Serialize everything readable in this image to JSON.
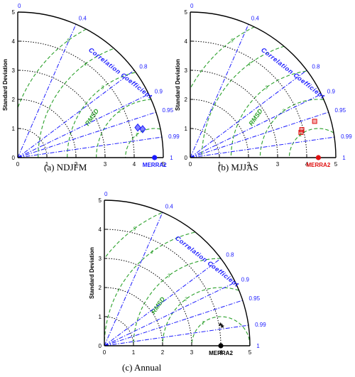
{
  "chart_data": [
    {
      "type": "taylor",
      "panel": "(a)",
      "caption": "NDJFM",
      "ylabel": "Standard Deviation",
      "corr_title": "Correlation Coefficient",
      "rmsd_title": "RMSD",
      "std_ticks": [
        "0",
        "1",
        "2",
        "3",
        "4",
        "5"
      ],
      "corr_ticks": [
        "0",
        "0.4",
        "0.8",
        "0.9",
        "0.95",
        "0.99",
        "1"
      ],
      "rmsd_ticks": [
        "1",
        "2",
        "3",
        "4",
        "5"
      ],
      "rlim": [
        0,
        5
      ],
      "reference": {
        "label": "MERRA2",
        "std": 4.7,
        "color": "#1a1aff"
      },
      "points": [
        {
          "std": 4.25,
          "corr": 0.97,
          "color": "#1a1aff",
          "marker": "diamond"
        },
        {
          "std": 4.4,
          "corr": 0.975,
          "color": "#1a1aff",
          "marker": "diamond"
        }
      ]
    },
    {
      "type": "taylor",
      "panel": "(b)",
      "caption": "MJJAS",
      "ylabel": "Standard Deviation",
      "corr_title": "Correlation Coefficient",
      "rmsd_title": "RMSD",
      "std_ticks": [
        "0",
        "1",
        "2",
        "3",
        "4",
        "5"
      ],
      "corr_ticks": [
        "0",
        "0.4",
        "0.8",
        "0.9",
        "0.95",
        "0.99",
        "1"
      ],
      "rmsd_ticks": [
        "1",
        "2",
        "3",
        "4",
        "5"
      ],
      "rlim": [
        0,
        5
      ],
      "reference": {
        "label": "MERRA2",
        "std": 4.4,
        "color": "#e01010"
      },
      "points": [
        {
          "std": 4.45,
          "corr": 0.96,
          "color": "#e01010",
          "marker": "square"
        },
        {
          "std": 3.95,
          "corr": 0.97,
          "color": "#e01010",
          "marker": "square"
        },
        {
          "std": 3.9,
          "corr": 0.975,
          "color": "#e01010",
          "marker": "square"
        }
      ]
    },
    {
      "type": "taylor",
      "panel": "(c)",
      "caption": "Annual",
      "ylabel": "Standard Deviation",
      "corr_title": "Correlation Coefficient",
      "rmsd_title": "RMSD",
      "std_ticks": [
        "0",
        "1",
        "2",
        "3",
        "4",
        "5"
      ],
      "corr_ticks": [
        "0",
        "0.4",
        "0.8",
        "0.9",
        "0.95",
        "0.99",
        "1"
      ],
      "rmsd_ticks": [
        "1",
        "2",
        "3",
        "4",
        "5"
      ],
      "rlim": [
        0,
        5
      ],
      "reference": {
        "label": "MERRA2",
        "std": 4.0,
        "color": "#000000"
      },
      "points": [
        {
          "std": 4.05,
          "corr": 0.985,
          "color": "#000000",
          "marker": "star"
        },
        {
          "std": 4.1,
          "corr": 0.988,
          "color": "#000000",
          "marker": "star"
        }
      ]
    }
  ],
  "colors": {
    "axis": "#000000",
    "std_arcs": "#000000",
    "corr_lines": "#1a1aff",
    "rmsd_arcs": "#2aa02a"
  }
}
